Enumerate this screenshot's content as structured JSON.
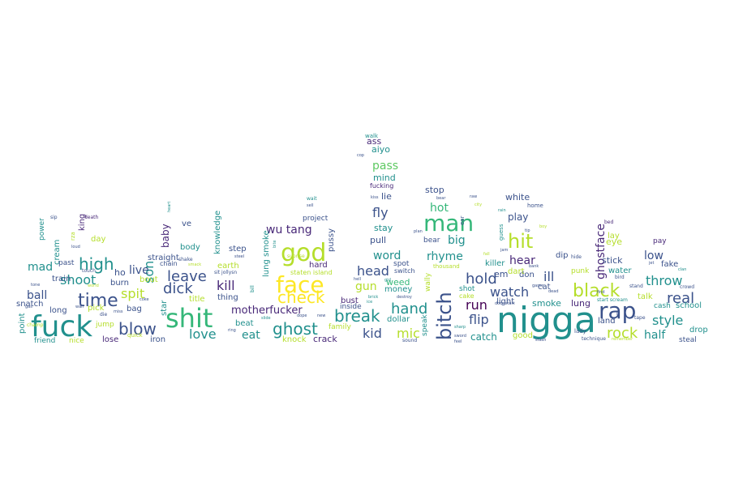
{
  "colors": {
    "background": "#ffffff",
    "navy": "#3b528b",
    "teal": "#21908d",
    "green": "#5ec962",
    "lime": "#b5de2b",
    "purple": "#482878",
    "dark": "#440154",
    "blue": "#31688e",
    "yellow": "#fde725",
    "mint": "#35b779",
    "cyan": "#26828e"
  },
  "words": [
    {
      "text": "nigga",
      "c": "teal"
    },
    {
      "text": "fuck",
      "c": "teal"
    },
    {
      "text": "shit",
      "c": "mint"
    },
    {
      "text": "rap",
      "c": "navy"
    },
    {
      "text": "bitch",
      "c": "navy"
    },
    {
      "text": "man",
      "c": "mint"
    },
    {
      "text": "god",
      "c": "lime"
    },
    {
      "text": "face",
      "c": "yellow"
    },
    {
      "text": "hit",
      "c": "lime"
    },
    {
      "text": "time",
      "c": "navy"
    },
    {
      "text": "black",
      "c": "lime"
    },
    {
      "text": "blow",
      "c": "navy"
    },
    {
      "text": "ghost",
      "c": "teal"
    },
    {
      "text": "ghostface",
      "c": "purple"
    },
    {
      "text": "check",
      "c": "yellow"
    },
    {
      "text": "high",
      "c": "teal"
    },
    {
      "text": "break",
      "c": "teal"
    },
    {
      "text": "real",
      "c": "navy"
    },
    {
      "text": "rock",
      "c": "lime"
    },
    {
      "text": "hand",
      "c": "teal"
    },
    {
      "text": "dick",
      "c": "navy"
    },
    {
      "text": "leave",
      "c": "navy"
    },
    {
      "text": "kill",
      "c": "purple"
    },
    {
      "text": "love",
      "c": "teal"
    },
    {
      "text": "head",
      "c": "navy"
    },
    {
      "text": "hold",
      "c": "navy"
    },
    {
      "text": "style",
      "c": "teal"
    },
    {
      "text": "throw",
      "c": "teal"
    },
    {
      "text": "shoot",
      "c": "teal"
    },
    {
      "text": "spit",
      "c": "lime"
    },
    {
      "text": "son",
      "c": "teal"
    },
    {
      "text": "fly",
      "c": "navy"
    },
    {
      "text": "kid",
      "c": "navy"
    },
    {
      "text": "mic",
      "c": "lime"
    },
    {
      "text": "run",
      "c": "dark"
    },
    {
      "text": "flip",
      "c": "navy"
    },
    {
      "text": "hear",
      "c": "purple"
    },
    {
      "text": "watch",
      "c": "navy"
    },
    {
      "text": "eat",
      "c": "teal"
    },
    {
      "text": "ill",
      "c": "navy"
    },
    {
      "text": "half",
      "c": "teal"
    },
    {
      "text": "rhyme",
      "c": "teal"
    },
    {
      "text": "hot",
      "c": "mint"
    },
    {
      "text": "motherfucker",
      "c": "purple"
    },
    {
      "text": "wu tang",
      "c": "purple"
    },
    {
      "text": "pass",
      "c": "green"
    },
    {
      "text": "big",
      "c": "teal"
    },
    {
      "text": "mad",
      "c": "teal"
    },
    {
      "text": "ball",
      "c": "navy"
    },
    {
      "text": "live",
      "c": "navy"
    },
    {
      "text": "baby",
      "c": "purple"
    },
    {
      "text": "word",
      "c": "teal"
    },
    {
      "text": "gun",
      "c": "lime"
    },
    {
      "text": "play",
      "c": "navy"
    },
    {
      "text": "catch",
      "c": "teal"
    },
    {
      "text": "smoke",
      "c": "teal"
    },
    {
      "text": "lung",
      "c": "purple"
    },
    {
      "text": "low",
      "c": "navy"
    },
    {
      "text": "crack",
      "c": "purple"
    },
    {
      "text": "knock",
      "c": "lime"
    },
    {
      "text": "stick",
      "c": "navy"
    },
    {
      "text": "lay",
      "c": "lime"
    },
    {
      "text": "eye",
      "c": "lime"
    },
    {
      "text": "white",
      "c": "navy"
    },
    {
      "text": "mind",
      "c": "teal"
    },
    {
      "text": "pull",
      "c": "navy"
    },
    {
      "text": "stay",
      "c": "teal"
    },
    {
      "text": "lie",
      "c": "navy"
    },
    {
      "text": "aiyo",
      "c": "teal"
    },
    {
      "text": "ass",
      "c": "purple"
    },
    {
      "text": "walk",
      "c": "teal"
    },
    {
      "text": "stop",
      "c": "navy"
    },
    {
      "text": "weed",
      "c": "mint"
    },
    {
      "text": "money",
      "c": "teal"
    },
    {
      "text": "dollar",
      "c": "teal"
    },
    {
      "text": "bust",
      "c": "purple"
    },
    {
      "text": "inside",
      "c": "navy"
    },
    {
      "text": "family",
      "c": "lime"
    },
    {
      "text": "friend",
      "c": "teal"
    },
    {
      "text": "nice",
      "c": "lime"
    },
    {
      "text": "lose",
      "c": "purple"
    },
    {
      "text": "iron",
      "c": "navy"
    },
    {
      "text": "bag",
      "c": "navy"
    },
    {
      "text": "burn",
      "c": "navy"
    },
    {
      "text": "train",
      "c": "navy"
    },
    {
      "text": "snatch",
      "c": "navy"
    },
    {
      "text": "point",
      "c": "teal"
    },
    {
      "text": "long",
      "c": "navy"
    },
    {
      "text": "cream",
      "c": "teal"
    },
    {
      "text": "power",
      "c": "teal"
    },
    {
      "text": "king",
      "c": "purple"
    },
    {
      "text": "day",
      "c": "lime"
    },
    {
      "text": "past",
      "c": "navy"
    },
    {
      "text": "pick",
      "c": "lime"
    },
    {
      "text": "jump",
      "c": "lime"
    },
    {
      "text": "star",
      "c": "teal"
    },
    {
      "text": "title",
      "c": "lime"
    },
    {
      "text": "bout",
      "c": "lime"
    },
    {
      "text": "straight",
      "c": "navy"
    },
    {
      "text": "body",
      "c": "teal"
    },
    {
      "text": "ve",
      "c": "navy"
    },
    {
      "text": "knowledge",
      "c": "teal"
    },
    {
      "text": "earth",
      "c": "lime"
    },
    {
      "text": "step",
      "c": "navy"
    },
    {
      "text": "thing",
      "c": "navy"
    },
    {
      "text": "beat",
      "c": "teal"
    },
    {
      "text": "lung smoke",
      "c": "teal"
    },
    {
      "text": "project",
      "c": "navy"
    },
    {
      "text": "hard",
      "c": "purple"
    },
    {
      "text": "pussy",
      "c": "navy"
    },
    {
      "text": "staten island",
      "c": "lime"
    },
    {
      "text": "wally",
      "c": "lime"
    },
    {
      "text": "speak",
      "c": "teal"
    },
    {
      "text": "bear",
      "c": "navy"
    },
    {
      "text": "killer",
      "c": "teal"
    },
    {
      "text": "em",
      "c": "navy"
    },
    {
      "text": "don",
      "c": "navy"
    },
    {
      "text": "dip",
      "c": "navy"
    },
    {
      "text": "cat",
      "c": "navy"
    },
    {
      "text": "punk",
      "c": "lime"
    },
    {
      "text": "water",
      "c": "teal"
    },
    {
      "text": "talk",
      "c": "lime"
    },
    {
      "text": "cash",
      "c": "teal"
    },
    {
      "text": "school",
      "c": "teal"
    },
    {
      "text": "drop",
      "c": "teal"
    },
    {
      "text": "steal",
      "c": "navy"
    },
    {
      "text": "fake",
      "c": "navy"
    },
    {
      "text": "pay",
      "c": "purple"
    },
    {
      "text": "land",
      "c": "navy"
    },
    {
      "text": "good",
      "c": "lime"
    },
    {
      "text": "light",
      "c": "navy"
    },
    {
      "text": "shot",
      "c": "teal"
    },
    {
      "text": "cake",
      "c": "lime"
    },
    {
      "text": "guess",
      "c": "teal"
    },
    {
      "text": "dart",
      "c": "lime"
    },
    {
      "text": "home",
      "c": "navy"
    },
    {
      "text": "ear",
      "c": "navy"
    },
    {
      "text": "fucking",
      "c": "purple"
    },
    {
      "text": "thousand",
      "c": "lime"
    },
    {
      "text": "chain",
      "c": "navy"
    },
    {
      "text": "shake",
      "c": "navy"
    },
    {
      "text": "ho",
      "c": "navy"
    },
    {
      "text": "sound",
      "c": "navy"
    },
    {
      "text": "lady",
      "c": "navy"
    },
    {
      "text": "bed",
      "c": "purple"
    },
    {
      "text": "start scream",
      "c": "teal"
    },
    {
      "text": "spot",
      "c": "navy"
    },
    {
      "text": "switch",
      "c": "navy"
    },
    {
      "text": "girl",
      "c": "teal"
    },
    {
      "text": "destroy",
      "c": "navy"
    },
    {
      "text": "stash",
      "c": "navy"
    },
    {
      "text": "quick",
      "c": "lime"
    },
    {
      "text": "loud",
      "c": "navy"
    },
    {
      "text": "touch",
      "c": "navy"
    },
    {
      "text": "coke",
      "c": "navy"
    },
    {
      "text": "miss",
      "c": "navy"
    },
    {
      "text": "die",
      "c": "navy"
    },
    {
      "text": "tone",
      "c": "navy"
    },
    {
      "text": "gas",
      "c": "navy"
    },
    {
      "text": "wall",
      "c": "navy"
    },
    {
      "text": "world",
      "c": "lime"
    },
    {
      "text": "rza",
      "c": "lime"
    },
    {
      "text": "sip",
      "c": "navy"
    },
    {
      "text": "death",
      "c": "purple"
    },
    {
      "text": "heart",
      "c": "teal"
    },
    {
      "text": "smack",
      "c": "lime"
    },
    {
      "text": "wait",
      "c": "teal"
    },
    {
      "text": "sell",
      "c": "navy"
    },
    {
      "text": "bird",
      "c": "navy"
    },
    {
      "text": "stand",
      "c": "navy"
    },
    {
      "text": "crowd",
      "c": "navy"
    },
    {
      "text": "hide",
      "c": "navy"
    },
    {
      "text": "tape",
      "c": "navy"
    },
    {
      "text": "ring",
      "c": "navy"
    },
    {
      "text": "champ",
      "c": "lime"
    },
    {
      "text": "steel",
      "c": "navy"
    },
    {
      "text": "suprise",
      "c": "lime"
    },
    {
      "text": "sword",
      "c": "navy"
    },
    {
      "text": "sharp",
      "c": "teal"
    },
    {
      "text": "hell",
      "c": "navy"
    },
    {
      "text": "brick",
      "c": "teal"
    },
    {
      "text": "ice",
      "c": "teal"
    },
    {
      "text": "slide",
      "c": "teal"
    },
    {
      "text": "dope",
      "c": "navy"
    },
    {
      "text": "technique",
      "c": "navy"
    },
    {
      "text": "remember",
      "c": "lime"
    },
    {
      "text": "door start",
      "c": "navy"
    },
    {
      "text": "game",
      "c": "navy"
    },
    {
      "text": "dead",
      "c": "navy"
    },
    {
      "text": "fall",
      "c": "lime"
    },
    {
      "text": "feel",
      "c": "navy"
    },
    {
      "text": "sit jollysn",
      "c": "navy"
    },
    {
      "text": "bill",
      "c": "teal"
    },
    {
      "text": "find",
      "c": "navy"
    },
    {
      "text": "new",
      "c": "navy"
    },
    {
      "text": "bite",
      "c": "teal"
    },
    {
      "text": "ll",
      "c": "navy"
    },
    {
      "text": "raw",
      "c": "navy"
    },
    {
      "text": "rain",
      "c": "teal"
    },
    {
      "text": "cop",
      "c": "navy"
    },
    {
      "text": "plan",
      "c": "navy"
    },
    {
      "text": "jet",
      "c": "navy"
    },
    {
      "text": "clan",
      "c": "teal"
    },
    {
      "text": "kiss",
      "c": "navy"
    },
    {
      "text": "bear",
      "c": "navy"
    },
    {
      "text": "city",
      "c": "lime"
    },
    {
      "text": "jam",
      "c": "navy"
    },
    {
      "text": "tip",
      "c": "navy"
    },
    {
      "text": "boy",
      "c": "lime"
    },
    {
      "text": "bank",
      "c": "navy"
    }
  ]
}
